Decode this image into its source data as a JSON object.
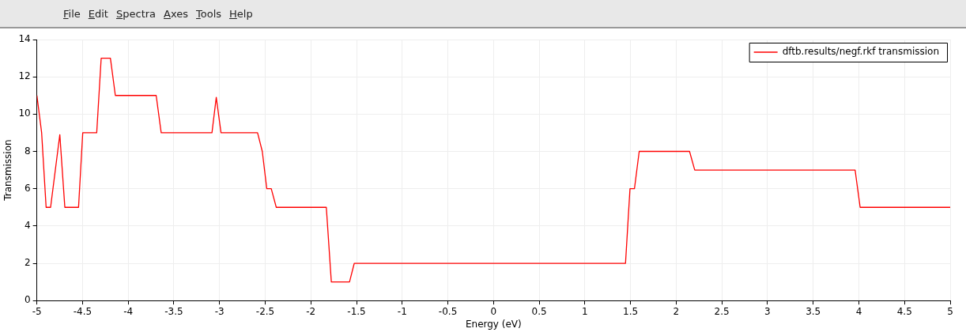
{
  "chart_data": {
    "type": "line",
    "xlabel": "Energy (eV)",
    "ylabel": "Transmission",
    "annotations": [
      "File",
      "Edit",
      "Spectra",
      "Axes",
      "Tools",
      "Help"
    ],
    "xlim": [
      -5,
      5
    ],
    "xticks": [
      -5,
      -4.5,
      -4,
      -3.5,
      -3,
      -2.5,
      -2,
      -1.5,
      -1,
      -0.5,
      0,
      0.5,
      1,
      1.5,
      2,
      2.5,
      3,
      3.5,
      4,
      4.5,
      5
    ],
    "ylim": [
      0,
      14
    ],
    "yticks": [
      0,
      2,
      4,
      6,
      8,
      10,
      12,
      14
    ],
    "grid": true,
    "legend": "top right",
    "marker": "none",
    "line_style": "solid",
    "series": [
      {
        "name": "dftb.results/negf.rkf transmission",
        "color": "#ff0000",
        "x": [
          -5,
          -4.948,
          -4.899,
          -4.85,
          -4.749,
          -4.694,
          -4.544,
          -4.498,
          -4.345,
          -4.296,
          -4.195,
          -4.141,
          -3.694,
          -3.639,
          -3.083,
          -3.036,
          -2.984,
          -2.584,
          -2.532,
          -2.483,
          -2.434,
          -2.379,
          -1.831,
          -1.776,
          -1.577,
          -1.525,
          1.445,
          1.494,
          1.543,
          1.595,
          2.146,
          2.203,
          3.959,
          4.014,
          5
        ],
        "values": [
          11,
          9,
          5,
          5,
          8.9,
          5,
          5,
          9,
          9,
          13,
          13,
          11,
          11,
          9,
          9,
          10.9,
          9,
          9,
          8,
          6,
          6,
          5,
          5,
          1,
          1,
          2,
          2,
          6,
          6,
          8,
          8,
          7,
          7,
          5,
          5
        ]
      }
    ]
  }
}
